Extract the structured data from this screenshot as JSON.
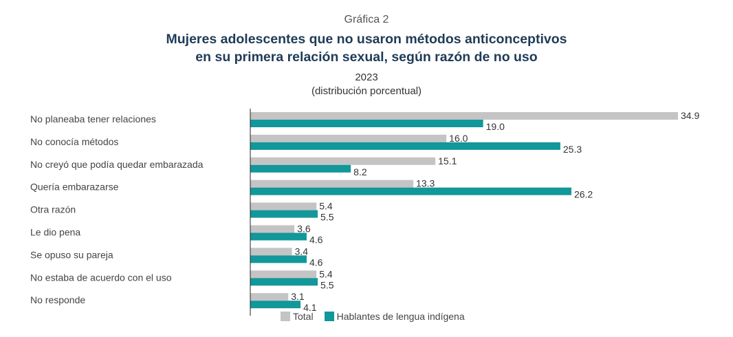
{
  "header": {
    "kicker": "Gráfica 2",
    "title_line1": "Mujeres adolescentes que no usaron métodos anticonceptivos",
    "title_line2": "en su primera relación sexual, según razón de no uso",
    "year": "2023",
    "unit": "(distribución porcentual)"
  },
  "colors": {
    "total": "#c4c4c4",
    "indigenous": "#12979a",
    "axis": "#222222"
  },
  "chart_data": {
    "type": "bar",
    "orientation": "horizontal",
    "categories": [
      "No planeaba tener relaciones",
      "No conocía métodos",
      "No creyó que podía quedar embarazada",
      "Quería embarazarse",
      "Otra razón",
      "Le dio pena",
      "Se opuso su pareja",
      "No estaba de acuerdo con el uso",
      "No responde"
    ],
    "series": [
      {
        "name": "Total",
        "values": [
          34.9,
          16.0,
          15.1,
          13.3,
          5.4,
          3.6,
          3.4,
          5.4,
          3.1
        ],
        "labels": [
          "34.9",
          "16.0",
          "15.1",
          "13.3",
          "5.4",
          "3.6",
          "3.4",
          "5.4",
          "3.1"
        ]
      },
      {
        "name": "Hablantes de lengua indígena",
        "values": [
          19.0,
          25.3,
          8.2,
          26.2,
          5.5,
          4.6,
          4.6,
          5.5,
          4.1
        ],
        "labels": [
          "19.0",
          "25.3",
          "8.2",
          "26.2",
          "5.5",
          "4.6",
          "4.6",
          "5.5",
          "4.1"
        ]
      }
    ],
    "xlim": [
      0,
      35
    ],
    "grid": false,
    "legend_position": "bottom"
  }
}
